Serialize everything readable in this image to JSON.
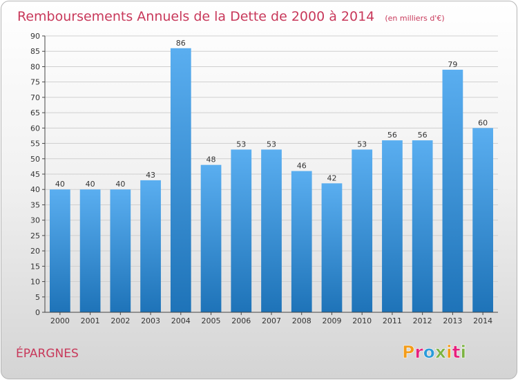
{
  "chart_data": {
    "type": "bar",
    "title": "Remboursements Annuels de la Dette de 2000 à 2014",
    "subtitle": "(en milliers d'€)",
    "categories": [
      "2000",
      "2001",
      "2002",
      "2003",
      "2004",
      "2005",
      "2006",
      "2007",
      "2008",
      "2009",
      "2010",
      "2011",
      "2012",
      "2013",
      "2014"
    ],
    "values": [
      40,
      40,
      40,
      43,
      86,
      48,
      53,
      53,
      46,
      42,
      53,
      56,
      56,
      79,
      60
    ],
    "ylim": [
      0,
      90
    ],
    "ytick_step": 5,
    "grid": true,
    "xlabel": "",
    "ylabel": "",
    "bar_color_top": "#5aaef0",
    "bar_color_bottom": "#1e73b8"
  },
  "footer": {
    "commune": "ÉPARGNES",
    "logo_text": "Proxiti",
    "logo_colors": [
      "#f39c19",
      "#e6207c",
      "#2b9bd9",
      "#7cb342",
      "#f39c19",
      "#e6207c",
      "#7cb342"
    ]
  },
  "colors": {
    "title": "#c8385a",
    "grid": "#cfcfcf",
    "axis": "#444444"
  }
}
